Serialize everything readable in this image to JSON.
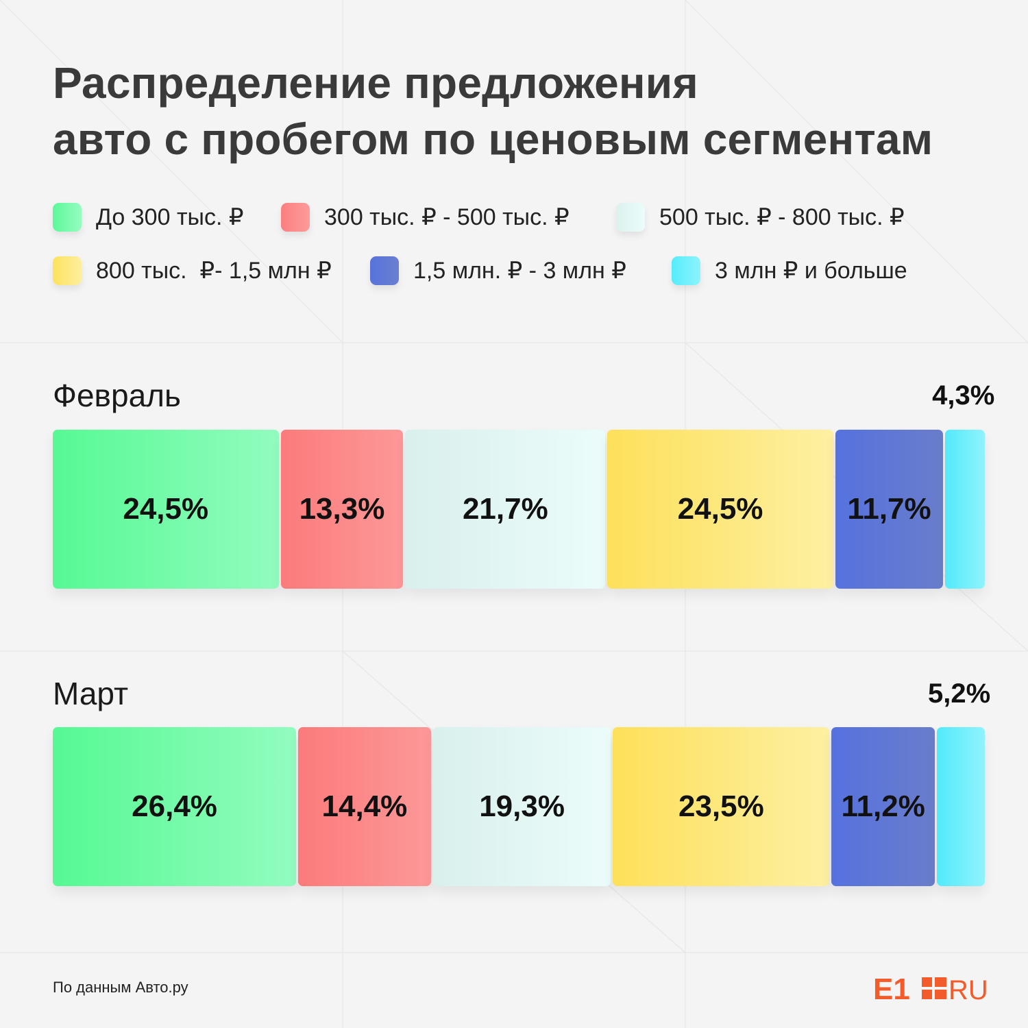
{
  "title": "Распределение предложения\nавто с пробегом по ценовым сегментам",
  "legend": [
    {
      "label": "До 300 тыс. ₽",
      "color": "#5cf89a"
    },
    {
      "label": "300 тыс. ₽ - 500 тыс. ₽",
      "color": "#fb7f7f"
    },
    {
      "label": "500 тыс. ₽ - 800 тыс. ₽",
      "color": "#dcf2ee"
    },
    {
      "label": "800 тыс.  ₽- 1,5 млн ₽",
      "color": "#fde25e"
    },
    {
      "label": "1,5 млн. ₽ - 3 млн ₽",
      "color": "#5773dc"
    },
    {
      "label": "3 млн ₽ и больше",
      "color": "#55ecfb"
    }
  ],
  "source": "По данным Авто.ру",
  "logo": {
    "left": "E1",
    "right": "RU",
    "color": "#f35b2a"
  },
  "chart_data": {
    "type": "bar",
    "stacked": true,
    "orientation": "horizontal",
    "categories": [
      "Февраль",
      "Март"
    ],
    "series": [
      {
        "name": "До 300 тыс. ₽",
        "values": [
          24.5,
          26.4
        ],
        "labels": [
          "24,5%",
          "26,4%"
        ]
      },
      {
        "name": "300 тыс. ₽ - 500 тыс. ₽",
        "values": [
          13.3,
          14.4
        ],
        "labels": [
          "13,3%",
          "14,4%"
        ]
      },
      {
        "name": "500 тыс. ₽ - 800 тыс. ₽",
        "values": [
          21.7,
          19.3
        ],
        "labels": [
          "21,7%",
          "19,3%"
        ]
      },
      {
        "name": "800 тыс.  ₽- 1,5 млн ₽",
        "values": [
          24.5,
          23.5
        ],
        "labels": [
          "24,5%",
          "23,5%"
        ]
      },
      {
        "name": "1,5 млн. ₽ - 3 млн ₽",
        "values": [
          11.7,
          11.2
        ],
        "labels": [
          "11,7%",
          "11,2%"
        ]
      },
      {
        "name": "3 млн ₽ и больше",
        "values": [
          4.3,
          5.2
        ],
        "labels": [
          "4,3%",
          "5,2%"
        ]
      }
    ],
    "legend_position": "top"
  }
}
